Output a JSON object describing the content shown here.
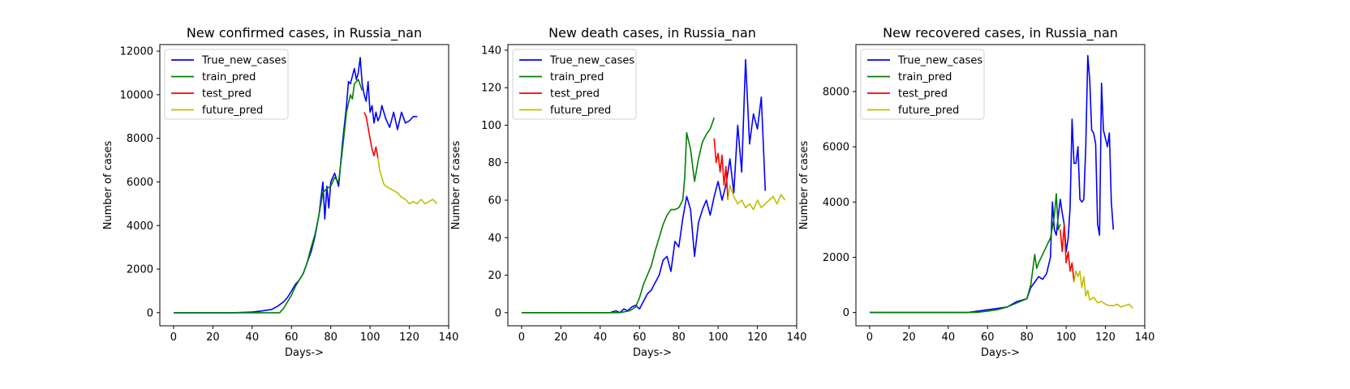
{
  "chart_data": [
    {
      "type": "line",
      "title": "New confirmed cases, in Russia_nan",
      "xlabel": "Days->",
      "ylabel": "Number of cases",
      "xlim": [
        -7,
        140
      ],
      "ylim": [
        -600,
        12300
      ],
      "xticks": [
        "0",
        "20",
        "40",
        "60",
        "80",
        "100",
        "120",
        "140"
      ],
      "yticks": [
        "0",
        "2000",
        "4000",
        "6000",
        "8000",
        "10000",
        "12000"
      ],
      "legend_position": "top-left",
      "series": [
        {
          "name": "True_new_cases",
          "color": "#0000ff",
          "x": [
            0,
            30,
            40,
            45,
            50,
            53,
            56,
            58,
            60,
            62,
            64,
            66,
            68,
            70,
            72,
            74,
            76,
            77,
            78,
            79,
            80,
            82,
            84,
            85,
            86,
            88,
            89,
            90,
            92,
            93,
            94,
            95,
            96,
            97,
            98,
            99,
            100,
            101,
            102,
            103,
            104,
            105,
            106,
            108,
            110,
            112,
            114,
            116,
            118,
            120,
            122,
            124
          ],
          "y": [
            0,
            0,
            30,
            80,
            150,
            300,
            500,
            700,
            1000,
            1300,
            1500,
            1800,
            2300,
            2800,
            3500,
            4500,
            6000,
            4300,
            5800,
            4800,
            6000,
            6400,
            5800,
            6800,
            7800,
            9500,
            10600,
            10500,
            11200,
            10700,
            11000,
            11700,
            10500,
            10000,
            9700,
            10600,
            9200,
            9500,
            8700,
            9200,
            8800,
            9000,
            9500,
            8900,
            8500,
            9200,
            8400,
            9200,
            8700,
            8800,
            9000,
            9000
          ]
        },
        {
          "name": "train_pred",
          "color": "#008000",
          "x": [
            0,
            40,
            50,
            54,
            56,
            58,
            60,
            62,
            64,
            66,
            68,
            70,
            72,
            74,
            76,
            78,
            80,
            82,
            84,
            86,
            88,
            90,
            91,
            92,
            94,
            96
          ],
          "y": [
            0,
            0,
            0,
            0,
            200,
            500,
            800,
            1200,
            1500,
            1800,
            2300,
            3000,
            3600,
            4500,
            5500,
            5700,
            5800,
            6200,
            6000,
            7500,
            9200,
            10000,
            9800,
            10500,
            10700,
            10200
          ]
        },
        {
          "name": "test_pred",
          "color": "#ff0000",
          "x": [
            97,
            98,
            99,
            100,
            101,
            102,
            103,
            104
          ],
          "y": [
            9200,
            9000,
            8500,
            8000,
            7500,
            7200,
            7600,
            7100
          ]
        },
        {
          "name": "future_pred",
          "color": "#bfbf00",
          "x": [
            104,
            105,
            106,
            107,
            108,
            110,
            112,
            114,
            116,
            118,
            120,
            122,
            124,
            126,
            128,
            130,
            132,
            134
          ],
          "y": [
            7100,
            6500,
            6200,
            5900,
            5800,
            5700,
            5600,
            5500,
            5300,
            5200,
            5000,
            5100,
            5000,
            5200,
            5000,
            5100,
            5200,
            5000
          ]
        }
      ]
    },
    {
      "type": "line",
      "title": "New death cases, in Russia_nan",
      "xlabel": "Days->",
      "ylabel": "Number of cases",
      "xlim": [
        -7,
        140
      ],
      "ylim": [
        -7,
        143
      ],
      "xticks": [
        "0",
        "20",
        "40",
        "60",
        "80",
        "100",
        "120",
        "140"
      ],
      "yticks": [
        "0",
        "20",
        "40",
        "60",
        "80",
        "100",
        "120",
        "140"
      ],
      "legend_position": "top-left",
      "series": [
        {
          "name": "True_new_cases",
          "color": "#0000ff",
          "x": [
            0,
            42,
            45,
            48,
            50,
            52,
            54,
            56,
            58,
            60,
            62,
            64,
            66,
            68,
            70,
            72,
            74,
            76,
            78,
            80,
            82,
            84,
            86,
            88,
            90,
            92,
            94,
            96,
            98,
            100,
            102,
            104,
            106,
            108,
            110,
            112,
            114,
            116,
            118,
            120,
            122,
            124
          ],
          "y": [
            0,
            0,
            0,
            1,
            0,
            2,
            1,
            3,
            4,
            2,
            6,
            10,
            12,
            16,
            20,
            28,
            30,
            22,
            38,
            35,
            50,
            62,
            55,
            30,
            48,
            55,
            60,
            52,
            62,
            70,
            60,
            68,
            82,
            64,
            100,
            75,
            135,
            90,
            106,
            98,
            115,
            65
          ]
        },
        {
          "name": "train_pred",
          "color": "#008000",
          "x": [
            0,
            40,
            45,
            50,
            55,
            58,
            60,
            62,
            64,
            66,
            68,
            70,
            72,
            74,
            76,
            78,
            80,
            82,
            83,
            84,
            86,
            88,
            90,
            92,
            94,
            96,
            98
          ],
          "y": [
            0,
            0,
            0,
            0,
            1,
            3,
            8,
            15,
            20,
            25,
            33,
            40,
            47,
            52,
            55,
            55,
            56,
            60,
            72,
            96,
            87,
            70,
            82,
            91,
            95,
            98,
            104
          ]
        },
        {
          "name": "test_pred",
          "color": "#ff0000",
          "x": [
            98,
            99,
            100,
            101,
            102,
            103,
            104,
            105
          ],
          "y": [
            93,
            80,
            85,
            75,
            84,
            68,
            78,
            60
          ]
        },
        {
          "name": "future_pred",
          "color": "#bfbf00",
          "x": [
            105,
            106,
            108,
            110,
            112,
            114,
            116,
            118,
            120,
            122,
            124,
            126,
            128,
            130,
            132,
            134
          ],
          "y": [
            60,
            68,
            62,
            58,
            60,
            56,
            58,
            55,
            60,
            56,
            58,
            60,
            62,
            58,
            63,
            60
          ]
        }
      ]
    },
    {
      "type": "line",
      "title": "New recovered cases, in Russia_nan",
      "xlabel": "Days->",
      "ylabel": "Number of cases",
      "xlim": [
        -7,
        140
      ],
      "ylim": [
        -480,
        9700
      ],
      "xticks": [
        "0",
        "20",
        "40",
        "60",
        "80",
        "100",
        "120",
        "140"
      ],
      "yticks": [
        "0",
        "2000",
        "4000",
        "6000",
        "8000"
      ],
      "legend_position": "top-left",
      "series": [
        {
          "name": "True_new_cases",
          "color": "#0000ff",
          "x": [
            0,
            50,
            55,
            60,
            65,
            70,
            75,
            80,
            82,
            84,
            86,
            88,
            90,
            92,
            93,
            94,
            95,
            96,
            97,
            98,
            99,
            100,
            101,
            102,
            103,
            104,
            105,
            106,
            107,
            108,
            109,
            110,
            111,
            112,
            113,
            114,
            115,
            116,
            117,
            118,
            119,
            120,
            121,
            122,
            123,
            124
          ],
          "y": [
            0,
            0,
            50,
            100,
            150,
            200,
            400,
            500,
            900,
            1100,
            1300,
            1200,
            1400,
            2000,
            4000,
            3000,
            2800,
            3500,
            4100,
            3600,
            3200,
            2200,
            2700,
            3800,
            7000,
            5400,
            5400,
            6000,
            4100,
            4000,
            4100,
            6000,
            9300,
            8400,
            6600,
            6500,
            6100,
            3200,
            2800,
            8300,
            6600,
            6300,
            6000,
            6500,
            4000,
            3000
          ]
        },
        {
          "name": "train_pred",
          "color": "#008000",
          "x": [
            0,
            50,
            55,
            60,
            65,
            70,
            75,
            80,
            82,
            84,
            85,
            86,
            88,
            90,
            92,
            94,
            95,
            96,
            97
          ],
          "y": [
            0,
            0,
            10,
            50,
            100,
            200,
            350,
            500,
            1000,
            2100,
            1600,
            1800,
            2100,
            2400,
            2700,
            3500,
            4300,
            3000,
            3200
          ]
        },
        {
          "name": "test_pred",
          "color": "#ff0000",
          "x": [
            97,
            98,
            99,
            100,
            101,
            102,
            103,
            104
          ],
          "y": [
            3000,
            2200,
            3200,
            1800,
            2200,
            1500,
            1800,
            1100
          ]
        },
        {
          "name": "future_pred",
          "color": "#bfbf00",
          "x": [
            104,
            105,
            106,
            107,
            108,
            109,
            110,
            111,
            112,
            114,
            116,
            118,
            120,
            122,
            124,
            126,
            128,
            130,
            132,
            134
          ],
          "y": [
            1100,
            1500,
            1300,
            1500,
            900,
            1300,
            600,
            800,
            450,
            550,
            350,
            400,
            300,
            250,
            250,
            300,
            200,
            250,
            300,
            150
          ]
        }
      ]
    }
  ]
}
